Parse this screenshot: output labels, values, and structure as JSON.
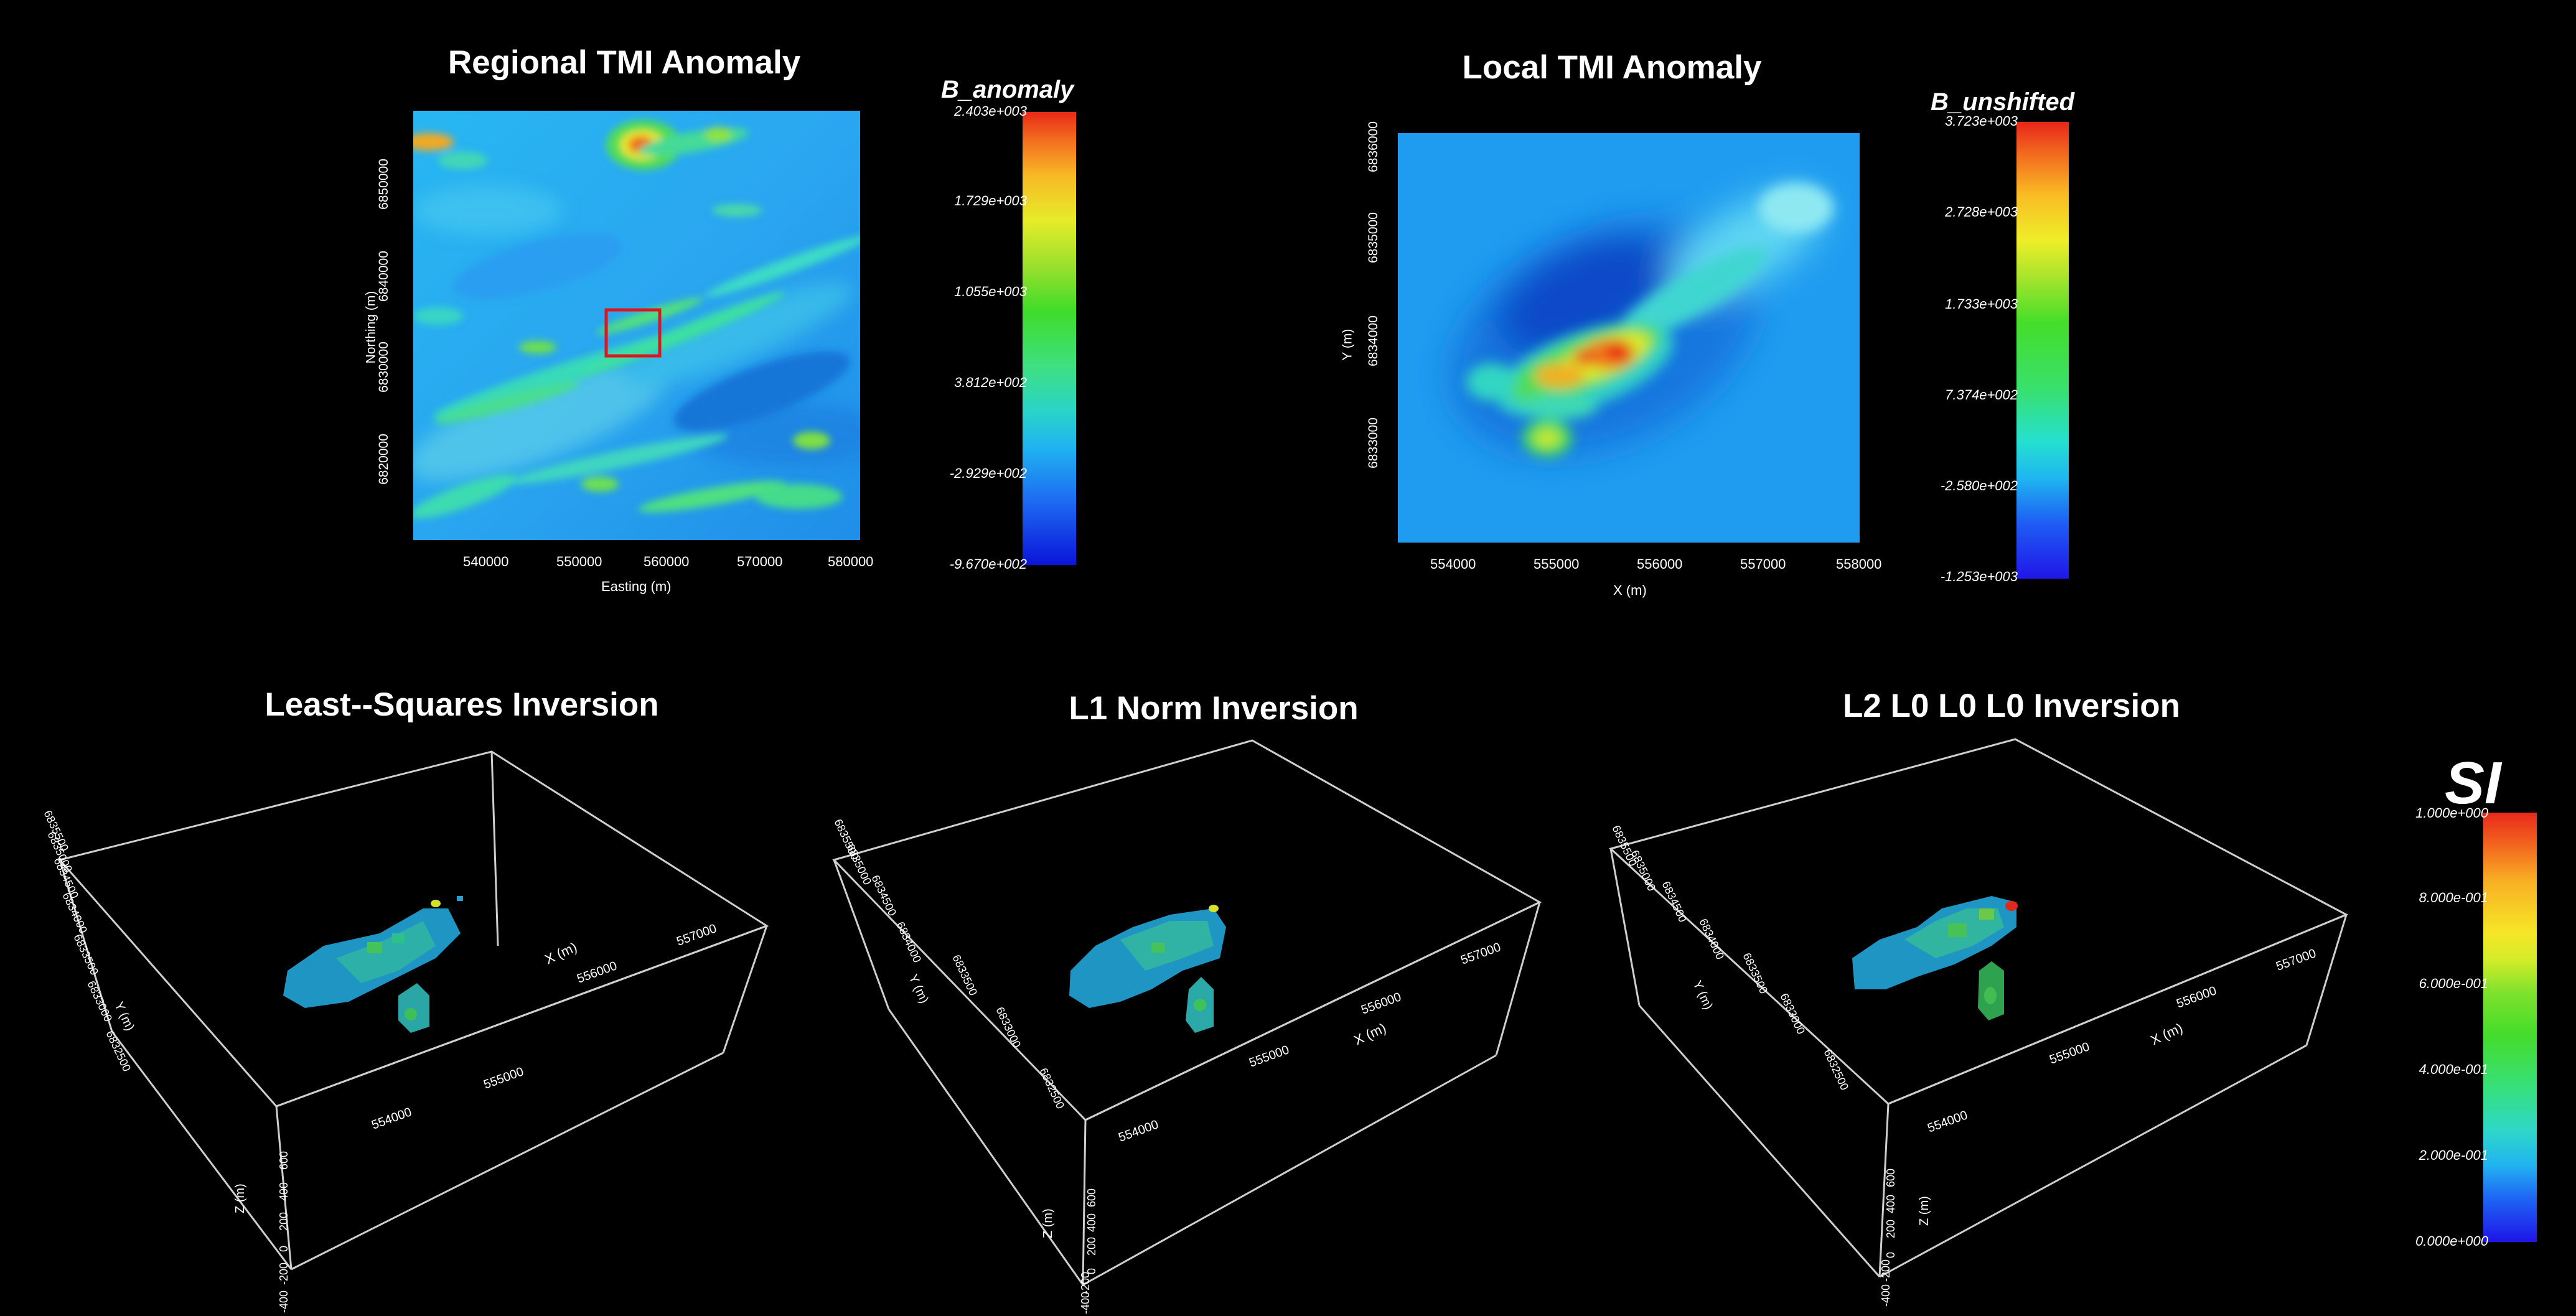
{
  "regional": {
    "title": "Regional TMI Anomaly",
    "xlabel": "Easting (m)",
    "ylabel": "Northing (m)",
    "xticks": [
      "540000",
      "550000",
      "560000",
      "570000",
      "580000"
    ],
    "yticks": [
      "6850000",
      "6840000",
      "6830000",
      "6820000"
    ],
    "colorbar": {
      "title": "B_anomaly",
      "ticks": [
        "2.403e+003",
        "1.729e+003",
        "1.055e+003",
        "3.812e+002",
        "-2.929e+002",
        "-9.670e+002"
      ]
    }
  },
  "local": {
    "title": "Local TMI Anomaly",
    "xlabel": "X (m)",
    "ylabel": "Y (m)",
    "xticks": [
      "554000",
      "555000",
      "556000",
      "557000",
      "558000"
    ],
    "yticks": [
      "6836000",
      "6835000",
      "6834000",
      "6833000"
    ],
    "colorbar": {
      "title": "B_unshifted",
      "ticks": [
        "3.723e+003",
        "2.728e+003",
        "1.733e+003",
        "7.374e+002",
        "-2.580e+002",
        "-1.253e+003"
      ]
    }
  },
  "inversions": [
    {
      "title": "Least--Squares Inversion",
      "xlabel": "X (m)",
      "ylabel": "Y (m)",
      "zlabel": "Z (m)",
      "xticks": [
        "554000",
        "555000",
        "556000",
        "557000"
      ],
      "yticks": [
        "6832500",
        "6833000",
        "6833500",
        "6834000",
        "6834500",
        "6835000",
        "6835500"
      ],
      "zticks": [
        "600",
        "400",
        "200",
        "0",
        "-200",
        "-400"
      ]
    },
    {
      "title": "L1 Norm Inversion",
      "xlabel": "X (m)",
      "ylabel": "Y (m)",
      "zlabel": "Z (m)",
      "xticks": [
        "554000",
        "555000",
        "556000",
        "557000"
      ],
      "yticks": [
        "6832500",
        "6833000",
        "6833500",
        "6834000",
        "6834500",
        "6835000",
        "6835500"
      ],
      "zticks": [
        "600",
        "400",
        "200",
        "0",
        "-200",
        "-400"
      ]
    },
    {
      "title": "L2 L0 L0 L0 Inversion",
      "xlabel": "X (m)",
      "ylabel": "Y (m)",
      "zlabel": "Z (m)",
      "xticks": [
        "554000",
        "555000",
        "556000",
        "557000"
      ],
      "yticks": [
        "6832500",
        "6833000",
        "6833500",
        "6834000",
        "6834500",
        "6835000",
        "6835500"
      ],
      "zticks": [
        "600",
        "400",
        "200",
        "0",
        "-200",
        "-400"
      ]
    }
  ],
  "si_colorbar": {
    "title": "SI",
    "ticks": [
      "1.000e+000",
      "8.000e-001",
      "6.000e-001",
      "4.000e-001",
      "2.000e-001",
      "0.000e+000"
    ]
  },
  "colors": {
    "background": "#000000",
    "selection_box": "#e0141c",
    "map_base": "#1e9cf0",
    "box_lines": "#cfcfcf"
  }
}
